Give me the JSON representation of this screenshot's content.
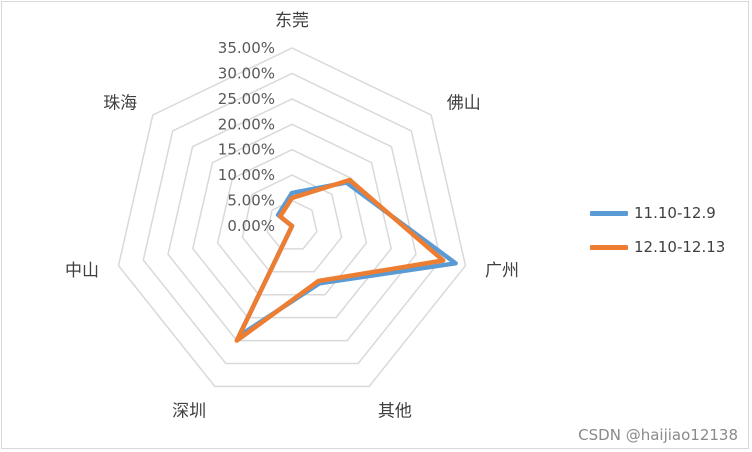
{
  "chart_data": {
    "type": "radar",
    "axes": [
      "东莞",
      "佛山",
      "广州",
      "其他",
      "深圳",
      "中山",
      "珠海"
    ],
    "tick_labels": [
      "0.00%",
      "5.00%",
      "10.00%",
      "15.00%",
      "20.00%",
      "25.00%",
      "30.00%",
      "35.00%"
    ],
    "rmax": 0.35,
    "tick_step": 0.05,
    "grid": true,
    "legend_position": "right",
    "series": [
      {
        "name": "11.10-12.9",
        "color": "#5b9bd5",
        "values": [
          0.065,
          0.137,
          0.33,
          0.125,
          0.24,
          0.0,
          0.035
        ]
      },
      {
        "name": "12.10-12.13",
        "color": "#ed7d31",
        "values": [
          0.055,
          0.145,
          0.305,
          0.12,
          0.25,
          0.0,
          0.03
        ]
      }
    ]
  },
  "watermark": "CSDN @haijiao12138"
}
